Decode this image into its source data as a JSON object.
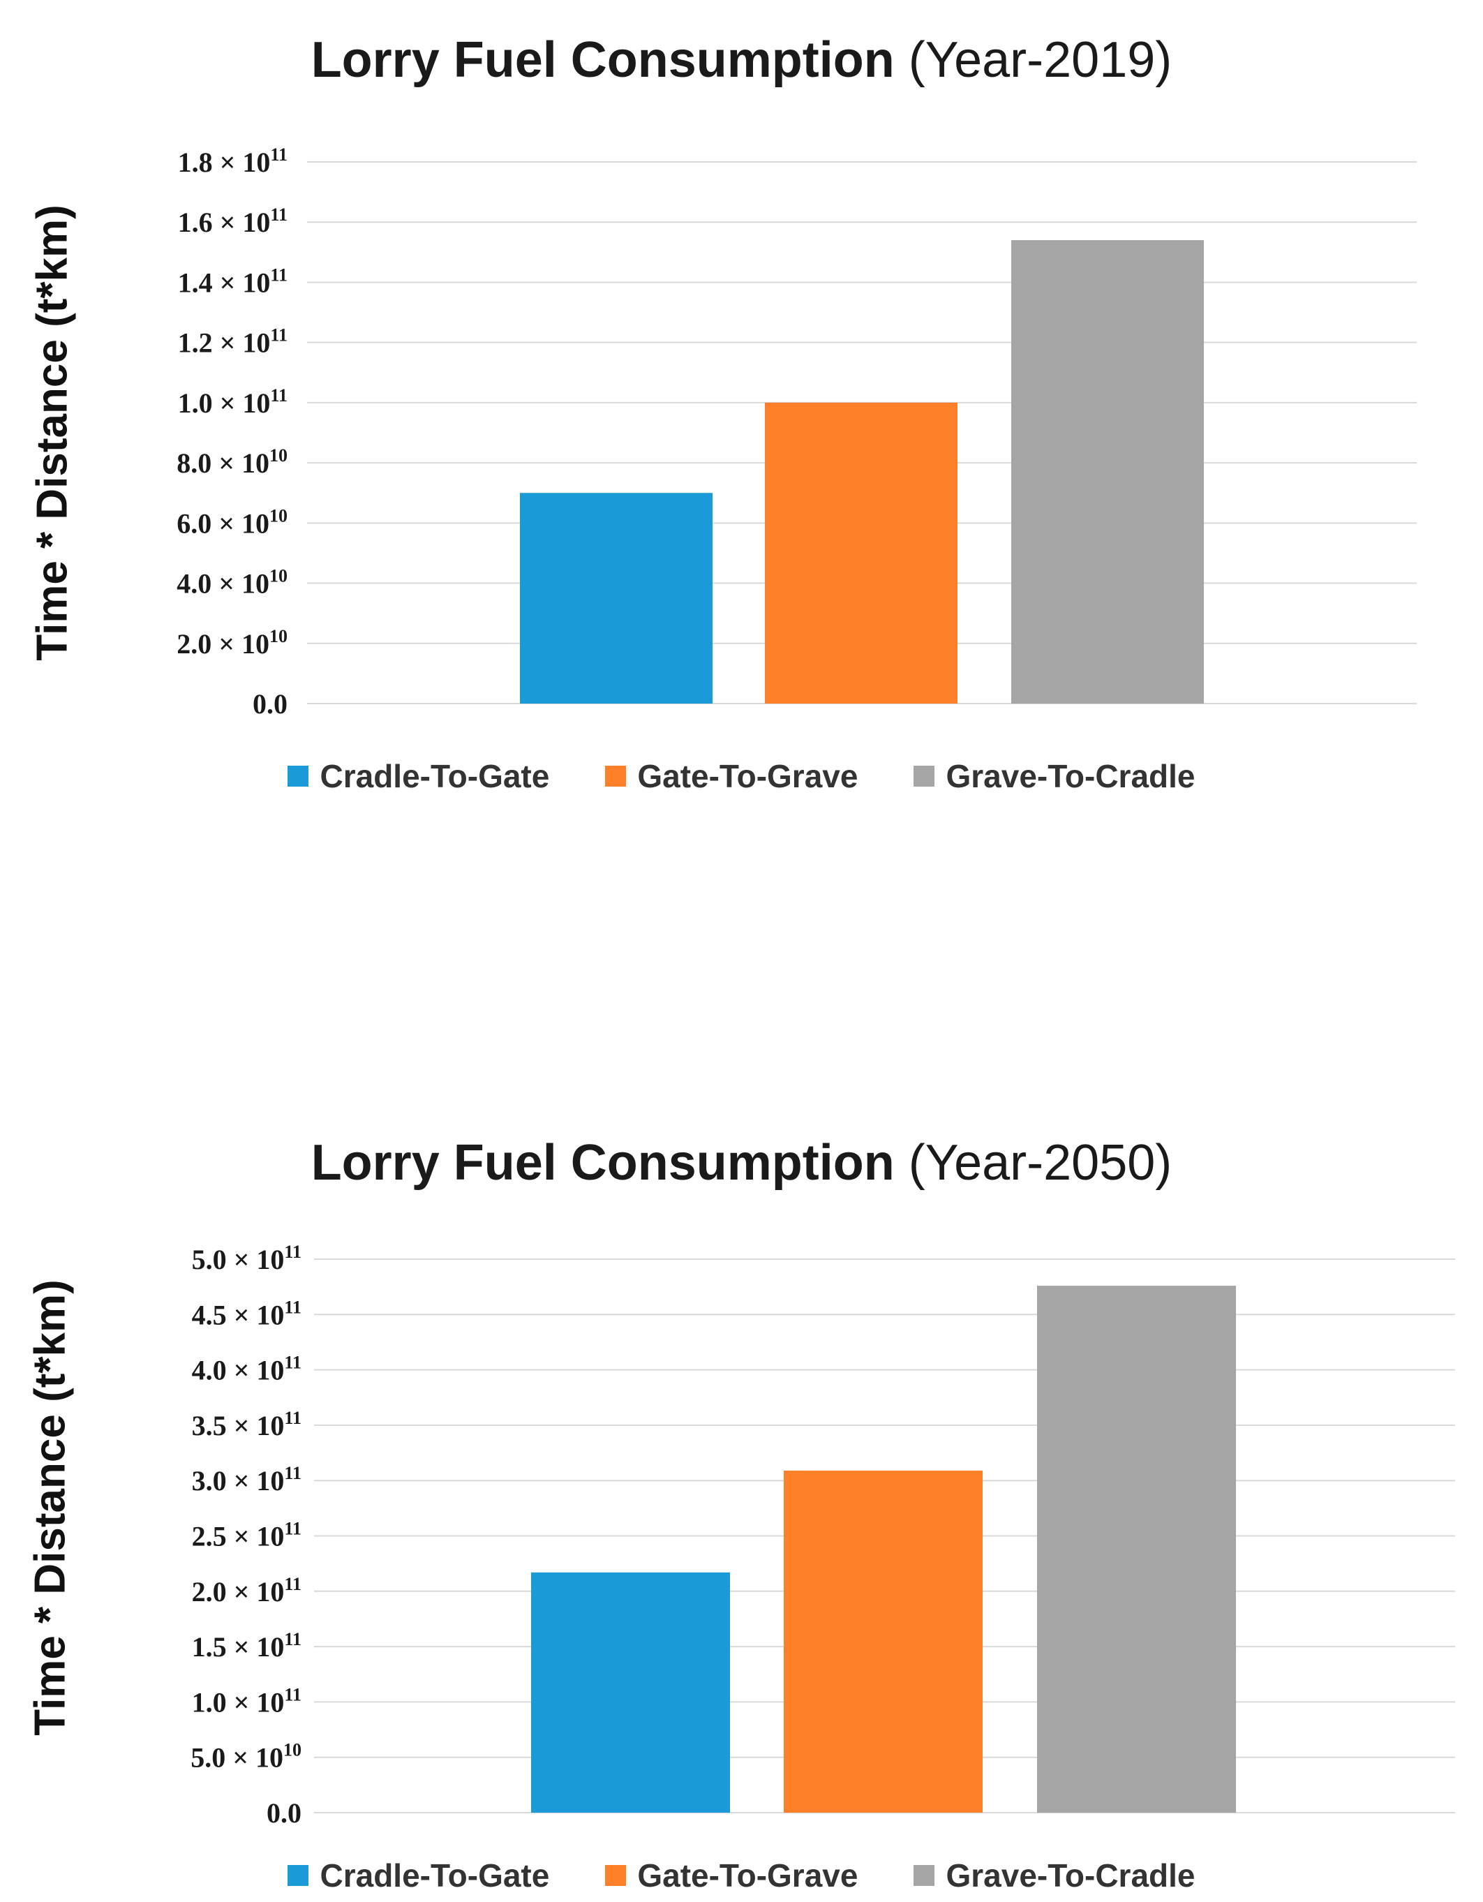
{
  "colors": {
    "cradle_to_gate": "#1a9bd7",
    "gate_to_grave": "#fd7f2a",
    "grave_to_cradle": "#a5a5a5",
    "gridline": "#d9d9d9"
  },
  "chart_data": [
    {
      "type": "bar",
      "title_bold": "Lorry Fuel Consumption",
      "title_rest": "(Year-2019)",
      "ylabel": "Time * Distance (t*km)",
      "xlabel": "",
      "categories": [
        "Cradle-To-Gate",
        "Gate-To-Grave",
        "Grave-To-Cradle"
      ],
      "values": [
        70000000000,
        100000000000,
        154000000000
      ],
      "ylim": [
        0,
        180000000000
      ],
      "yticks": [
        {
          "value": 0,
          "mantissa": "0.0",
          "exp": ""
        },
        {
          "value": 20000000000,
          "mantissa": "2.0",
          "exp": "10"
        },
        {
          "value": 40000000000,
          "mantissa": "4.0",
          "exp": "10"
        },
        {
          "value": 60000000000,
          "mantissa": "6.0",
          "exp": "10"
        },
        {
          "value": 80000000000,
          "mantissa": "8.0",
          "exp": "10"
        },
        {
          "value": 100000000000,
          "mantissa": "1.0",
          "exp": "11"
        },
        {
          "value": 120000000000,
          "mantissa": "1.2",
          "exp": "11"
        },
        {
          "value": 140000000000,
          "mantissa": "1.4",
          "exp": "11"
        },
        {
          "value": 160000000000,
          "mantissa": "1.6",
          "exp": "11"
        },
        {
          "value": 180000000000,
          "mantissa": "1.8",
          "exp": "11"
        }
      ],
      "grid": true,
      "legend_position": "bottom"
    },
    {
      "type": "bar",
      "title_bold": "Lorry Fuel Consumption",
      "title_rest": "(Year-2050)",
      "ylabel": "Time * Distance (t*km)",
      "xlabel": "",
      "categories": [
        "Cradle-To-Gate",
        "Gate-To-Grave",
        "Grave-To-Cradle"
      ],
      "values": [
        217000000000,
        309000000000,
        476000000000
      ],
      "ylim": [
        0,
        500000000000
      ],
      "yticks": [
        {
          "value": 0,
          "mantissa": "0.0",
          "exp": ""
        },
        {
          "value": 50000000000,
          "mantissa": "5.0",
          "exp": "10"
        },
        {
          "value": 100000000000,
          "mantissa": "1.0",
          "exp": "11"
        },
        {
          "value": 150000000000,
          "mantissa": "1.5",
          "exp": "11"
        },
        {
          "value": 200000000000,
          "mantissa": "2.0",
          "exp": "11"
        },
        {
          "value": 250000000000,
          "mantissa": "2.5",
          "exp": "11"
        },
        {
          "value": 300000000000,
          "mantissa": "3.0",
          "exp": "11"
        },
        {
          "value": 350000000000,
          "mantissa": "3.5",
          "exp": "11"
        },
        {
          "value": 400000000000,
          "mantissa": "4.0",
          "exp": "11"
        },
        {
          "value": 450000000000,
          "mantissa": "4.5",
          "exp": "11"
        },
        {
          "value": 500000000000,
          "mantissa": "5.0",
          "exp": "11"
        }
      ],
      "grid": true,
      "legend_position": "bottom"
    }
  ]
}
